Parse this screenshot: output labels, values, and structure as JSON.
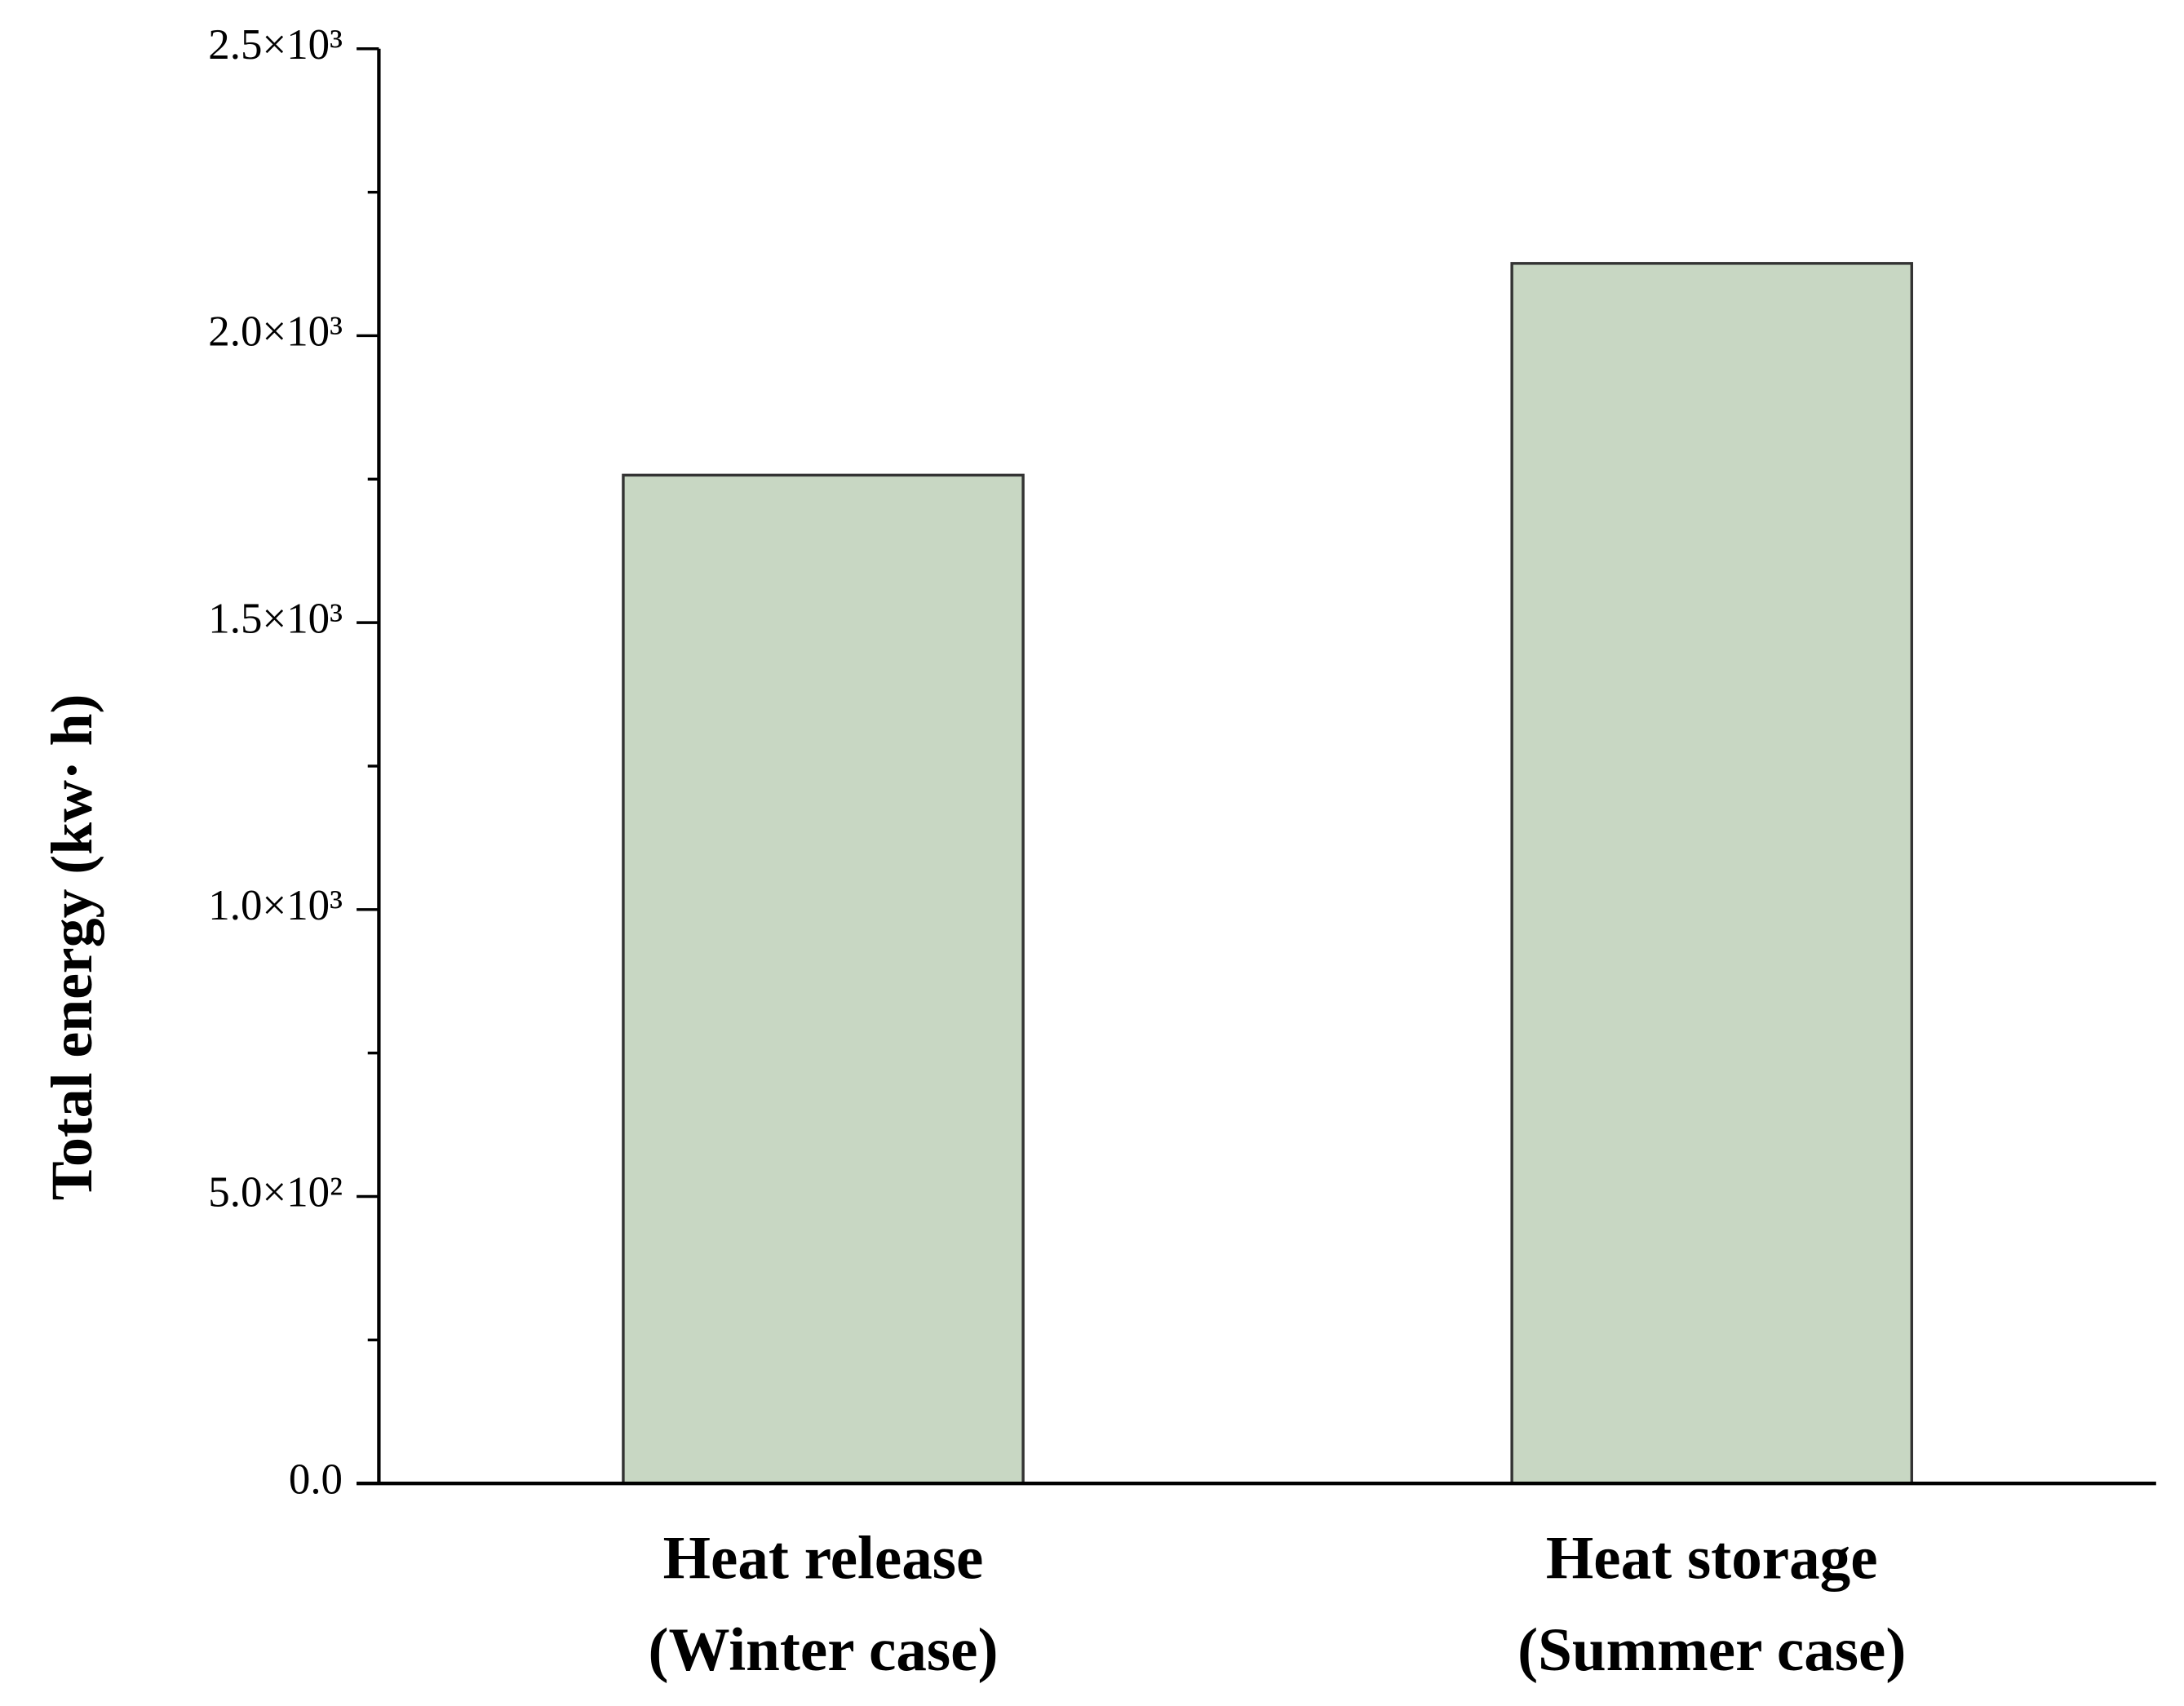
{
  "chart_data": {
    "type": "bar",
    "y_label": "Total energy (kw· h)",
    "categories": [
      "Heat release\n(Winter case)",
      "Heat storage\n(Summer case)"
    ],
    "values": [
      1757,
      2126
    ],
    "color": "#c8d7c3",
    "ylim": [
      0,
      2500
    ],
    "yticks": [
      {
        "value": 0,
        "label": "0.0"
      },
      {
        "value": 500,
        "label": "5.0×10²"
      },
      {
        "value": 1000,
        "label": "1.0×10³"
      },
      {
        "value": 1500,
        "label": "1.5×10³"
      },
      {
        "value": 2000,
        "label": "2.0×10³"
      },
      {
        "value": 2500,
        "label": "2.5×10³"
      }
    ],
    "grid": false
  }
}
